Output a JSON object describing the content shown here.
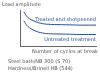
{
  "chart_data": {
    "type": "line",
    "y_label": "Load amplitude",
    "x_label": "Number of cycles at break",
    "annotations": [
      "Steel bath/NB 300 (S 70)",
      "Hardness/Brinell HB (544)"
    ],
    "xlim": [
      0,
      10
    ],
    "ylim": [
      0,
      100
    ],
    "tick_labels": false,
    "grid": false,
    "series": [
      {
        "name": "Treated and shotpeened",
        "color": "#2b4f8f",
        "x": [
          0.5,
          1,
          2,
          3,
          4,
          6,
          8,
          10
        ],
        "values": [
          95,
          80,
          68,
          62,
          60,
          59,
          58,
          58
        ]
      },
      {
        "name": "Untreated treatment",
        "color": "#2b4f8f",
        "x": [
          0.5,
          1,
          2,
          3,
          4,
          6,
          8,
          10
        ],
        "values": [
          70,
          55,
          42,
          36,
          34,
          33,
          32,
          32
        ]
      }
    ]
  }
}
